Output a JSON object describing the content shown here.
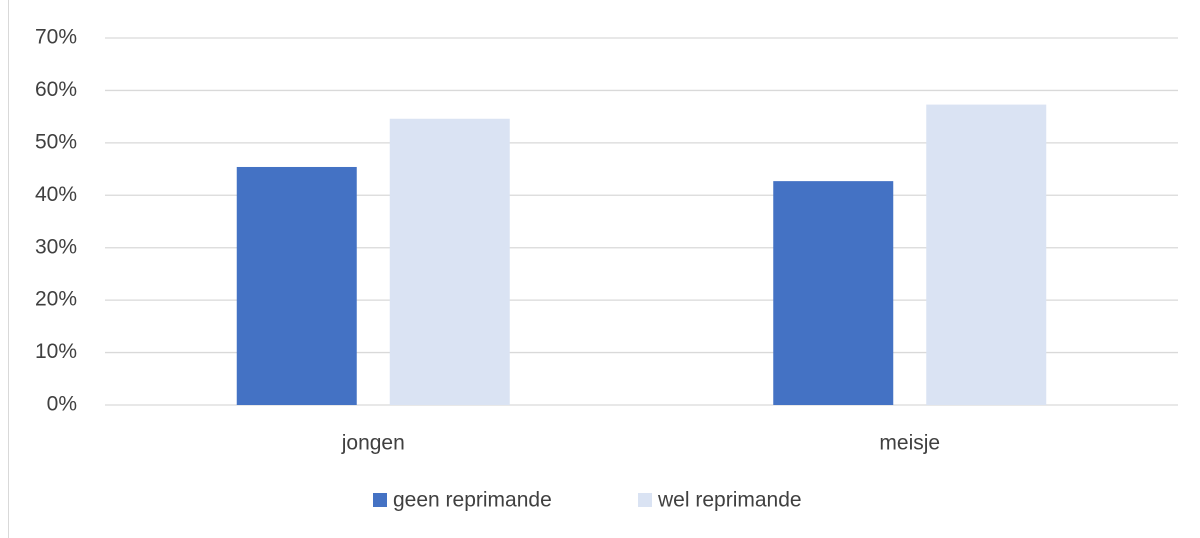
{
  "chart_data": {
    "type": "bar",
    "categories": [
      "jongen",
      "meisje"
    ],
    "series": [
      {
        "name": "geen reprimande",
        "color": "#4472c4",
        "values": [
          45.4,
          42.7
        ]
      },
      {
        "name": "wel reprimande",
        "color": "#dae3f3",
        "values": [
          54.6,
          57.3
        ]
      }
    ],
    "ylim": [
      0,
      70
    ],
    "yticks": [
      {
        "value": 0,
        "label": "0%"
      },
      {
        "value": 10,
        "label": "10%"
      },
      {
        "value": 20,
        "label": "20%"
      },
      {
        "value": 30,
        "label": "30%"
      },
      {
        "value": 40,
        "label": "40%"
      },
      {
        "value": 50,
        "label": "50%"
      },
      {
        "value": 60,
        "label": "60%"
      },
      {
        "value": 70,
        "label": "70%"
      }
    ],
    "grid": true,
    "legend": "bottom"
  }
}
